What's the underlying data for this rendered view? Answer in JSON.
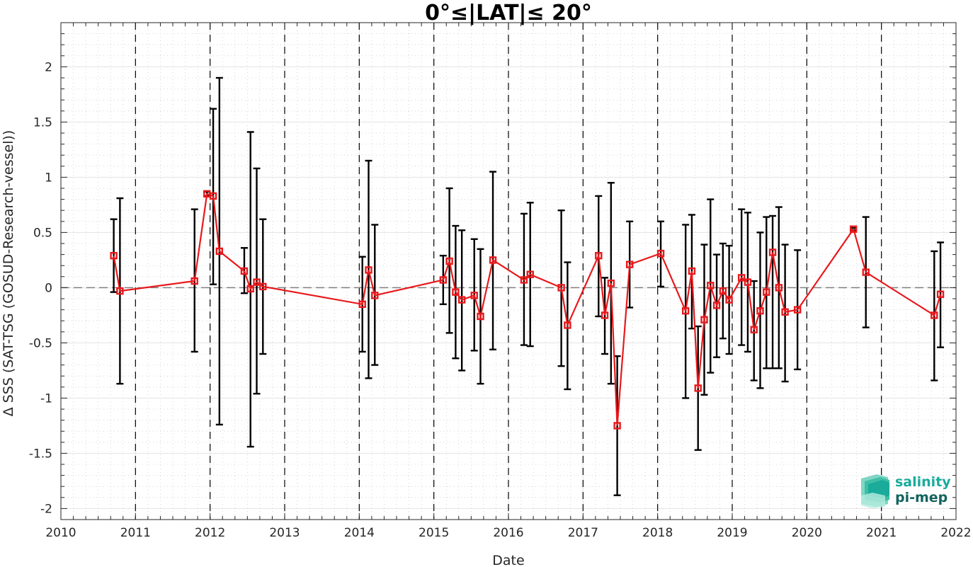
{
  "chart_data": {
    "type": "line",
    "title": "0°≤|LAT|≤ 20°",
    "xlabel": "Date",
    "ylabel": "Δ SSS (SAT-TSG (GOSUD-Research-vessel))",
    "xlim": [
      2010,
      2022
    ],
    "ylim": [
      -2.1,
      2.4
    ],
    "x_ticks": [
      "2010",
      "2011",
      "2012",
      "2013",
      "2014",
      "2015",
      "2016",
      "2017",
      "2018",
      "2019",
      "2020",
      "2021",
      "2022"
    ],
    "y_ticks": [
      "2",
      "1.5",
      "1",
      "0.5",
      "0",
      "-0.5",
      "-1",
      "-1.5",
      "-2"
    ],
    "grid": true,
    "reference_line": 0,
    "year_divider_lines": [
      "2011",
      "2012",
      "2013",
      "2014",
      "2015",
      "2016",
      "2017",
      "2018",
      "2019",
      "2020",
      "2021"
    ],
    "series": [
      {
        "color": "#e8191c",
        "errorbar_color": "#000000",
        "points": [
          {
            "x": "2010-09",
            "y": 0.29,
            "lo": -0.04,
            "hi": 0.62
          },
          {
            "x": "2010-10",
            "y": -0.03,
            "lo": -0.87,
            "hi": 0.81
          },
          {
            "x": "2011-10",
            "y": 0.06,
            "lo": -0.58,
            "hi": 0.71
          },
          {
            "x": "2011-12",
            "y": 0.85,
            "lo": 0.83,
            "hi": 0.87
          },
          {
            "x": "2012-01",
            "y": 0.83,
            "lo": 0.03,
            "hi": 1.62
          },
          {
            "x": "2012-02",
            "y": 0.33,
            "lo": -1.24,
            "hi": 1.9
          },
          {
            "x": "2012-06",
            "y": 0.15,
            "lo": -0.05,
            "hi": 0.36
          },
          {
            "x": "2012-07",
            "y": -0.01,
            "lo": -1.44,
            "hi": 1.41
          },
          {
            "x": "2012-08",
            "y": 0.05,
            "lo": -0.96,
            "hi": 1.08
          },
          {
            "x": "2012-09",
            "y": 0.01,
            "lo": -0.6,
            "hi": 0.62
          },
          {
            "x": "2014-01",
            "y": -0.15,
            "lo": -0.58,
            "hi": 0.28
          },
          {
            "x": "2014-02",
            "y": 0.16,
            "lo": -0.82,
            "hi": 1.15
          },
          {
            "x": "2014-03",
            "y": -0.07,
            "lo": -0.7,
            "hi": 0.57
          },
          {
            "x": "2015-02",
            "y": 0.07,
            "lo": -0.15,
            "hi": 0.29
          },
          {
            "x": "2015-03",
            "y": 0.24,
            "lo": -0.41,
            "hi": 0.9
          },
          {
            "x": "2015-04",
            "y": -0.04,
            "lo": -0.64,
            "hi": 0.56
          },
          {
            "x": "2015-05",
            "y": -0.11,
            "lo": -0.75,
            "hi": 0.52
          },
          {
            "x": "2015-07",
            "y": -0.07,
            "lo": -0.57,
            "hi": 0.44
          },
          {
            "x": "2015-08",
            "y": -0.26,
            "lo": -0.87,
            "hi": 0.35
          },
          {
            "x": "2015-10",
            "y": 0.25,
            "lo": -0.56,
            "hi": 1.05
          },
          {
            "x": "2016-03",
            "y": 0.07,
            "lo": -0.52,
            "hi": 0.67
          },
          {
            "x": "2016-04",
            "y": 0.12,
            "lo": -0.53,
            "hi": 0.77
          },
          {
            "x": "2016-09",
            "y": 0.0,
            "lo": -0.71,
            "hi": 0.7
          },
          {
            "x": "2016-10",
            "y": -0.34,
            "lo": -0.92,
            "hi": 0.23
          },
          {
            "x": "2017-03",
            "y": 0.29,
            "lo": -0.26,
            "hi": 0.83
          },
          {
            "x": "2017-04",
            "y": -0.25,
            "lo": -0.6,
            "hi": 0.09
          },
          {
            "x": "2017-05",
            "y": 0.04,
            "lo": -0.87,
            "hi": 0.95
          },
          {
            "x": "2017-06",
            "y": -1.25,
            "lo": -1.88,
            "hi": -0.62
          },
          {
            "x": "2017-08",
            "y": 0.21,
            "lo": -0.18,
            "hi": 0.6
          },
          {
            "x": "2018-01",
            "y": 0.31,
            "lo": 0.01,
            "hi": 0.6
          },
          {
            "x": "2018-05",
            "y": -0.21,
            "lo": -1.0,
            "hi": 0.57
          },
          {
            "x": "2018-06",
            "y": 0.15,
            "lo": -0.37,
            "hi": 0.66
          },
          {
            "x": "2018-07",
            "y": -0.91,
            "lo": -1.47,
            "hi": -0.35
          },
          {
            "x": "2018-08",
            "y": -0.29,
            "lo": -0.97,
            "hi": 0.39
          },
          {
            "x": "2018-09",
            "y": 0.02,
            "lo": -0.77,
            "hi": 0.8
          },
          {
            "x": "2018-10",
            "y": -0.16,
            "lo": -0.63,
            "hi": 0.3
          },
          {
            "x": "2018-11",
            "y": -0.03,
            "lo": -0.46,
            "hi": 0.4
          },
          {
            "x": "2018-12",
            "y": -0.11,
            "lo": -0.6,
            "hi": 0.38
          },
          {
            "x": "2019-02",
            "y": 0.09,
            "lo": -0.52,
            "hi": 0.71
          },
          {
            "x": "2019-03",
            "y": 0.05,
            "lo": -0.58,
            "hi": 0.68
          },
          {
            "x": "2019-04",
            "y": -0.38,
            "lo": -0.84,
            "hi": 0.06
          },
          {
            "x": "2019-05",
            "y": -0.21,
            "lo": -0.91,
            "hi": 0.5
          },
          {
            "x": "2019-06",
            "y": -0.04,
            "lo": -0.73,
            "hi": 0.64
          },
          {
            "x": "2019-07",
            "y": 0.32,
            "lo": -0.73,
            "hi": 0.65
          },
          {
            "x": "2019-08",
            "y": 0.0,
            "lo": -0.73,
            "hi": 0.73
          },
          {
            "x": "2019-09",
            "y": -0.22,
            "lo": -0.85,
            "hi": 0.39
          },
          {
            "x": "2019-11",
            "y": -0.2,
            "lo": -0.74,
            "hi": 0.34
          },
          {
            "x": "2020-08",
            "y": 0.53,
            "lo": 0.52,
            "hi": 0.54
          },
          {
            "x": "2020-10",
            "y": 0.14,
            "lo": -0.36,
            "hi": 0.64
          },
          {
            "x": "2021-09",
            "y": -0.25,
            "lo": -0.84,
            "hi": 0.33
          },
          {
            "x": "2021-10",
            "y": -0.06,
            "lo": -0.54,
            "hi": 0.41
          }
        ]
      }
    ]
  },
  "logo": {
    "line1": "salinity",
    "line2": "pi-mep",
    "color1": "#1aab9b",
    "color2": "#13635e"
  }
}
